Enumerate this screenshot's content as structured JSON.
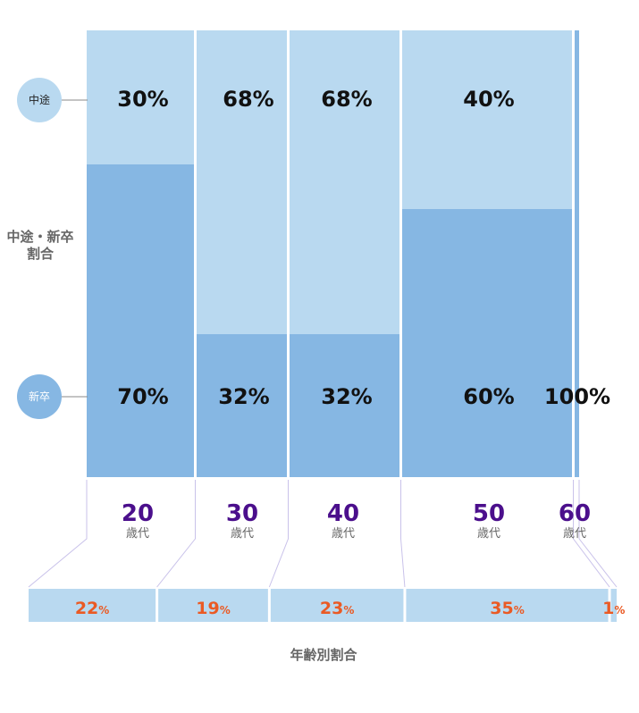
{
  "chart_data": {
    "type": "bar",
    "stacked": true,
    "categories": [
      "20",
      "30",
      "40",
      "50",
      "60"
    ],
    "age_unit": "歳代",
    "series": [
      {
        "name": "中途",
        "values": [
          30,
          68,
          68,
          40,
          0
        ],
        "labels": [
          "30%",
          "68%",
          "68%",
          "40%",
          ""
        ]
      },
      {
        "name": "新卒",
        "values": [
          70,
          32,
          32,
          60,
          100
        ],
        "labels": [
          "70%",
          "32%",
          "32%",
          "60%",
          "100%"
        ]
      }
    ],
    "age_share": {
      "values": [
        22,
        19,
        23,
        35,
        1
      ],
      "unit": "%"
    },
    "side_label": [
      "中途・新卒",
      "割合"
    ],
    "footer_title": "年齢別割合",
    "colors": {
      "mid_career": "#b9d9f0",
      "new_grad": "#86b7e3",
      "age_text": "#4b0f8c",
      "share_text": "#ea5a24",
      "share_band": "#b9d9f0",
      "connector": "#c9c2ea"
    }
  }
}
